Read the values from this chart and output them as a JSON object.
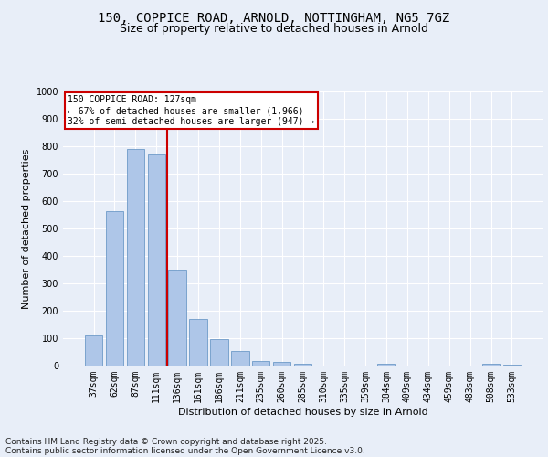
{
  "title_line1": "150, COPPICE ROAD, ARNOLD, NOTTINGHAM, NG5 7GZ",
  "title_line2": "Size of property relative to detached houses in Arnold",
  "xlabel": "Distribution of detached houses by size in Arnold",
  "ylabel": "Number of detached properties",
  "categories": [
    "37sqm",
    "62sqm",
    "87sqm",
    "111sqm",
    "136sqm",
    "161sqm",
    "186sqm",
    "211sqm",
    "235sqm",
    "260sqm",
    "285sqm",
    "310sqm",
    "335sqm",
    "359sqm",
    "384sqm",
    "409sqm",
    "434sqm",
    "459sqm",
    "483sqm",
    "508sqm",
    "533sqm"
  ],
  "values": [
    110,
    565,
    790,
    770,
    350,
    170,
    97,
    53,
    17,
    12,
    8,
    0,
    0,
    0,
    8,
    0,
    0,
    0,
    0,
    8,
    5
  ],
  "bar_color": "#aec6e8",
  "bar_edge_color": "#5b8dc0",
  "vline_x_index": 3.5,
  "vline_color": "#cc0000",
  "annotation_text": "150 COPPICE ROAD: 127sqm\n← 67% of detached houses are smaller (1,966)\n32% of semi-detached houses are larger (947) →",
  "annotation_box_color": "#cc0000",
  "annotation_box_fill": "#ffffff",
  "ylim": [
    0,
    1000
  ],
  "yticks": [
    0,
    100,
    200,
    300,
    400,
    500,
    600,
    700,
    800,
    900,
    1000
  ],
  "bg_color": "#e8eef8",
  "plot_bg_color": "#e8eef8",
  "footer_line1": "Contains HM Land Registry data © Crown copyright and database right 2025.",
  "footer_line2": "Contains public sector information licensed under the Open Government Licence v3.0.",
  "grid_color": "#ffffff",
  "title_fontsize": 10,
  "subtitle_fontsize": 9,
  "tick_fontsize": 7,
  "ylabel_fontsize": 8,
  "xlabel_fontsize": 8,
  "footer_fontsize": 6.5,
  "annotation_fontsize": 7
}
